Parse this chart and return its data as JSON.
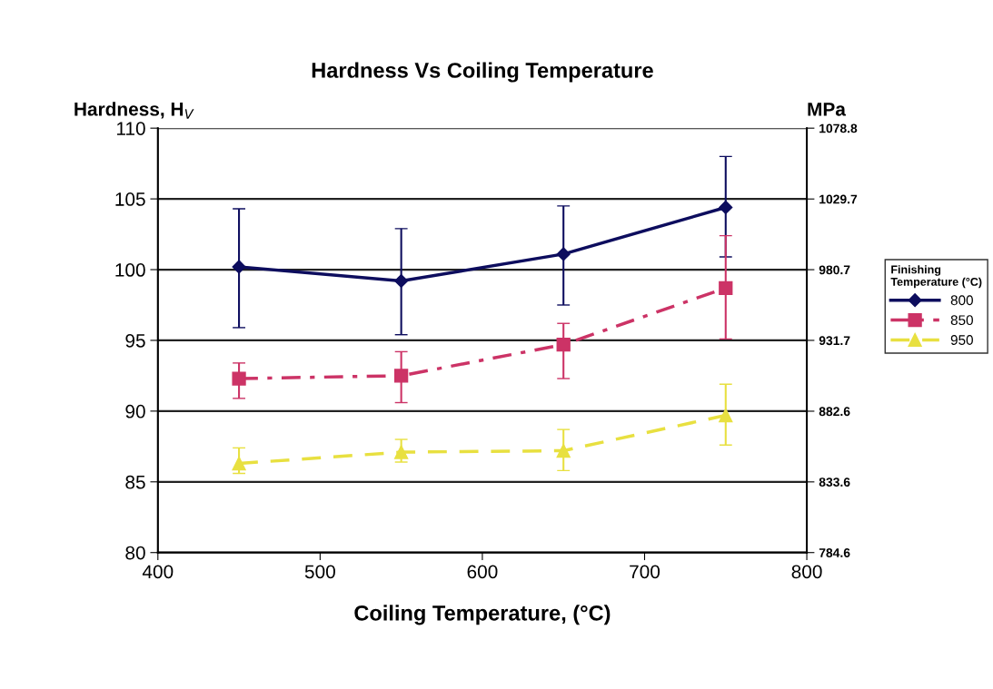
{
  "chart_data": {
    "type": "line",
    "title": "Hardness Vs Coiling Temperature",
    "xlabel": "Coiling Temperature, (°C)",
    "ylabel": "Hardness, H$_{V}$",
    "y2label": "MPa",
    "legend_title": "Finishing Temperature (°C)",
    "x": [
      450,
      550,
      650,
      750
    ],
    "series": [
      {
        "name": "800",
        "color": "#0d0d5e",
        "marker": "diamond",
        "line_style": "solid",
        "values": [
          100.2,
          99.2,
          101.1,
          104.4
        ],
        "errors": [
          [
            95.9,
            104.3
          ],
          [
            95.4,
            102.9
          ],
          [
            97.5,
            104.5
          ],
          [
            100.9,
            108.0
          ]
        ]
      },
      {
        "name": "850",
        "color": "#cc3366",
        "marker": "square",
        "line_style": "dashdot",
        "values": [
          92.3,
          92.5,
          94.7,
          98.7
        ],
        "errors": [
          [
            90.9,
            93.4
          ],
          [
            90.6,
            94.2
          ],
          [
            92.3,
            96.2
          ],
          [
            95.1,
            102.4
          ]
        ]
      },
      {
        "name": "950",
        "color": "#e8e040",
        "marker": "triangle",
        "line_style": "dashed",
        "values": [
          86.3,
          87.1,
          87.2,
          89.7
        ],
        "errors": [
          [
            85.6,
            87.4
          ],
          [
            86.4,
            88.0
          ],
          [
            85.8,
            88.7
          ],
          [
            87.6,
            91.9
          ]
        ]
      }
    ],
    "xlim": [
      400,
      800
    ],
    "xticks": [
      400,
      500,
      600,
      700,
      800
    ],
    "ylim": [
      80,
      110
    ],
    "yticks": [
      80,
      85,
      90,
      95,
      100,
      105,
      110
    ],
    "y2lim": [
      784.6,
      1078.8
    ],
    "y2ticks": [
      784.6,
      833.6,
      882.6,
      931.7,
      980.7,
      1029.7,
      1078.8
    ],
    "grid": "y",
    "legend": "right"
  }
}
